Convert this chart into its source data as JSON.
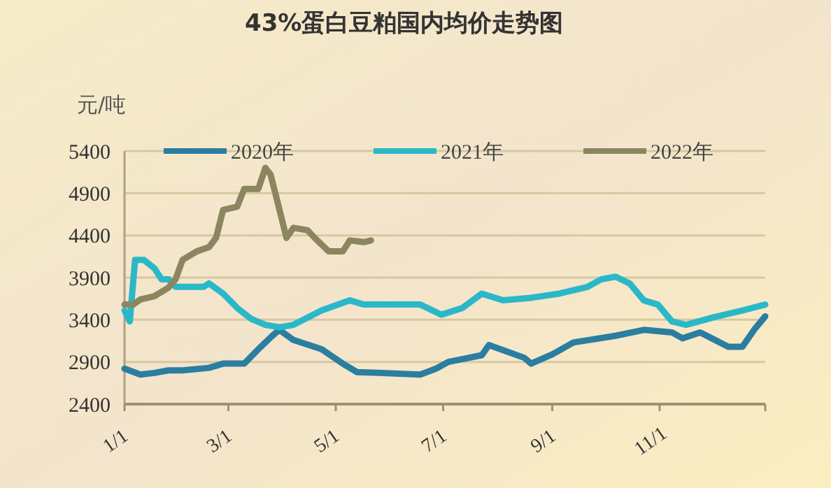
{
  "chart_data": {
    "type": "line",
    "title": "43%蛋白豆粕国内均价走势图",
    "ylabel": "元/吨",
    "xlim": [
      "--01-01",
      "--12-31"
    ],
    "xticks": [
      {
        "value": "--01-01",
        "label": "1/1"
      },
      {
        "value": "--03-01",
        "label": "3/1"
      },
      {
        "value": "--05-01",
        "label": "5/1"
      },
      {
        "value": "--07-01",
        "label": "7/1"
      },
      {
        "value": "--09-01",
        "label": "9/1"
      },
      {
        "value": "--11-01",
        "label": "11/1"
      },
      {
        "value": "--12-31",
        "label": null
      }
    ],
    "ylim": [
      2400,
      5400
    ],
    "yticks": [
      2400,
      2900,
      3400,
      3900,
      4400,
      4900,
      5400
    ],
    "grid": "y",
    "legend": "top",
    "line_style": "solid",
    "marker": "none",
    "series": [
      {
        "name": "2020年",
        "color": "#2a7ea0",
        "x": [
          "--01-01",
          "--01-10",
          "--01-18",
          "--01-26",
          "--02-03",
          "--02-18",
          "--02-26",
          "--03-10",
          "--03-18",
          "--03-26",
          "--03-30",
          "--04-07",
          "--04-23",
          "--05-05",
          "--05-13",
          "--05-25",
          "--06-18",
          "--06-27",
          "--07-04",
          "--07-23",
          "--07-27",
          "--08-16",
          "--08-20",
          "--09-01",
          "--09-13",
          "--10-07",
          "--10-23",
          "--11-08",
          "--11-14",
          "--11-24",
          "--12-10",
          "--12-18",
          "--12-25",
          "--12-31"
        ],
        "values": [
          2820,
          2750,
          2770,
          2800,
          2800,
          2830,
          2880,
          2880,
          3050,
          3210,
          3280,
          3160,
          3050,
          2880,
          2780,
          2770,
          2750,
          2820,
          2900,
          2980,
          3100,
          2950,
          2880,
          2990,
          3130,
          3210,
          3280,
          3250,
          3180,
          3250,
          3080,
          3080,
          3290,
          3440
        ]
      },
      {
        "name": "2021年",
        "color": "#2ab8c8",
        "x": [
          "--01-01",
          "--01-04",
          "--01-07",
          "--01-12",
          "--01-18",
          "--01-22",
          "--01-26",
          "--01-30",
          "--02-03",
          "--02-15",
          "--02-18",
          "--02-26",
          "--03-06",
          "--03-14",
          "--03-22",
          "--03-30",
          "--04-07",
          "--04-23",
          "--05-09",
          "--05-17",
          "--06-02",
          "--06-18",
          "--06-30",
          "--07-12",
          "--07-23",
          "--08-04",
          "--08-20",
          "--09-05",
          "--09-21",
          "--09-29",
          "--10-07",
          "--10-15",
          "--10-23",
          "--10-31",
          "--11-08",
          "--11-16",
          "--12-02",
          "--12-18",
          "--12-31"
        ],
        "values": [
          3510,
          3380,
          4110,
          4110,
          4010,
          3880,
          3880,
          3790,
          3790,
          3790,
          3830,
          3710,
          3540,
          3410,
          3340,
          3310,
          3340,
          3510,
          3630,
          3580,
          3580,
          3580,
          3460,
          3540,
          3710,
          3630,
          3660,
          3710,
          3790,
          3880,
          3910,
          3830,
          3630,
          3580,
          3380,
          3340,
          3430,
          3510,
          3580
        ]
      },
      {
        "name": "2022年",
        "color": "#8b8560",
        "x": [
          "--01-01",
          "--01-06",
          "--01-10",
          "--01-18",
          "--01-26",
          "--01-30",
          "--02-03",
          "--02-11",
          "--02-18",
          "--02-22",
          "--02-26",
          "--03-06",
          "--03-10",
          "--03-18",
          "--03-22",
          "--03-25",
          "--03-29",
          "--04-03",
          "--04-07",
          "--04-15",
          "--04-19",
          "--04-27",
          "--05-05",
          "--05-09",
          "--05-17",
          "--05-21"
        ],
        "values": [
          3580,
          3580,
          3640,
          3680,
          3780,
          3880,
          4110,
          4210,
          4260,
          4370,
          4700,
          4740,
          4950,
          4950,
          5200,
          5120,
          4790,
          4370,
          4490,
          4460,
          4370,
          4210,
          4210,
          4340,
          4320,
          4340
        ]
      }
    ]
  }
}
